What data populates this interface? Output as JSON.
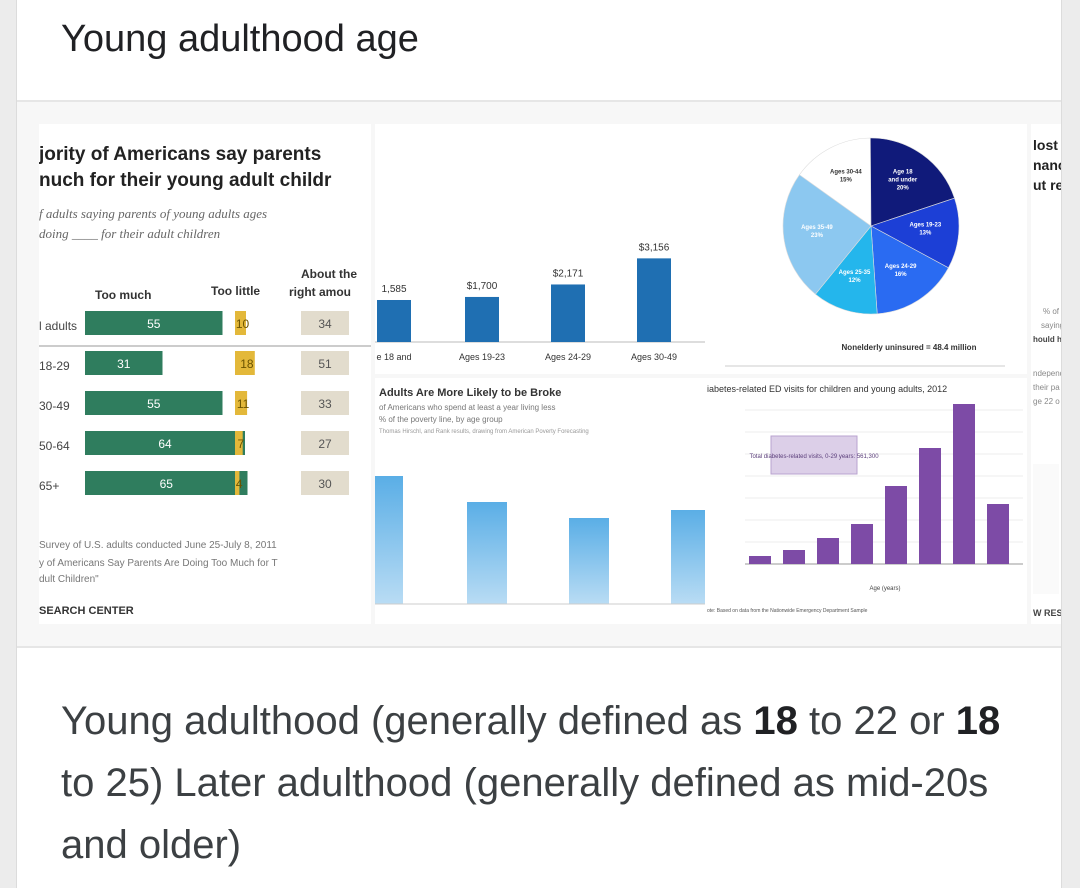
{
  "query": {
    "title": "Young adulthood age"
  },
  "images": {
    "pew": {
      "heading1": "jority of Americans say parents",
      "heading2": "nuch for their young adult childr",
      "sub1": "f adults saying parents of young adults ages",
      "sub2": "doing ____ for their adult children",
      "col_too_much": "Too much",
      "col_too_little": "Too little",
      "col_about1": "About the",
      "col_about2": "right amou",
      "rows": [
        {
          "label": "l adults",
          "much": "55",
          "little": "10",
          "right": "34"
        },
        {
          "label": "18-29",
          "much": "31",
          "little": "18",
          "right": "51"
        },
        {
          "label": "30-49",
          "much": "55",
          "little": "11",
          "right": "33"
        },
        {
          "label": "50-64",
          "much": "64",
          "little": "7",
          "right": "27"
        },
        {
          "label": "65+",
          "much": "65",
          "little": "4",
          "right": "30"
        }
      ],
      "note1": "Survey of U.S. adults conducted June 25-July 8, 2011",
      "note2": "y of Americans Say Parents Are Doing Too Much for T",
      "note3": "dult Children\"",
      "source": "SEARCH CENTER"
    },
    "bars_top": {
      "values": [
        "1,585",
        "$1,700",
        "$2,171",
        "$3,156"
      ],
      "labels": [
        "e 18 and",
        "Ages 19-23",
        "Ages 24-29",
        "Ages 30-49"
      ]
    },
    "bars_broke": {
      "title": "Adults Are More Likely to be Broke",
      "sub": "of Americans who spend at least a year living less",
      "sub2": "% of the poverty line, by age group",
      "sub3": "Thomas Hirschl, and Rank results, drawing from American Poverty Forecasting"
    },
    "pie": {
      "labels": [
        "Ages 30-44\n15%",
        "Age 18\nand under\n20%",
        "Ages 19-23\n13%",
        "Ages 24-29\n16%",
        "Ages 25-35\n12%",
        "Ages 35-49\n23%"
      ],
      "caption": "Nonelderly uninsured = 48.4 million"
    },
    "diabetes": {
      "title": "iabetes-related ED visits for children and young adults, 2012",
      "box": "Total diabetes-related visits, 0-29 years: 561,300",
      "xlabel": "Age (years)",
      "foot": "ote: Based on data from the Nationwide Emergency Department Sample"
    },
    "partial": {
      "heading1": "lost s",
      "heading2": "nanci",
      "heading3": "ut rea",
      "side1": "% of",
      "side2": "saying",
      "side3": "hould ha",
      "side4": "ndepend",
      "side5": "their pa",
      "side6": "ge 22 o",
      "foot": "W RESE"
    }
  },
  "answer": {
    "p1": "Young adulthood (generally defined as ",
    "b1": "18",
    "p2": " to 22 or ",
    "b2": "18",
    "p3": " to 25) Later adulthood (generally defined as mid-20s and older)"
  },
  "colors": {
    "pew_green": "#2f7d5e",
    "pew_gold": "#e3b83a",
    "pew_tan": "#e2dccd",
    "bar_blue": "#1f6fb2",
    "light_blue": "#7fbfe8",
    "purple": "#7d4ba6",
    "navy": "#101a7a"
  }
}
